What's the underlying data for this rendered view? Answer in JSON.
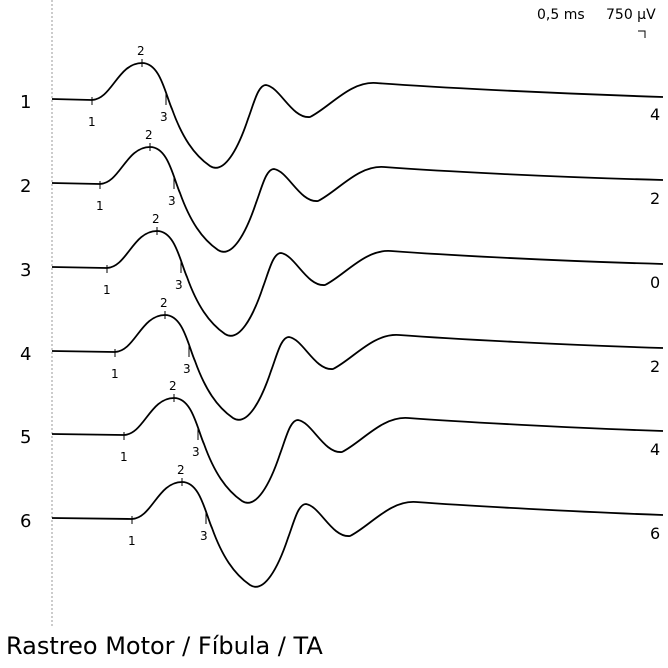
{
  "caption": "Rastreo Motor / Fíbula / TA",
  "scale": {
    "time": "0,5 ms",
    "amplitude": "750 µV"
  },
  "chart_data": {
    "type": "line",
    "title": "Rastreo Motor / Fíbula / TA",
    "time_per_division_ms": 0.5,
    "amplitude_per_division_uV": 750,
    "traces": [
      {
        "label": "1",
        "right_value": "4"
      },
      {
        "label": "2",
        "right_value": "2"
      },
      {
        "label": "3",
        "right_value": "0"
      },
      {
        "label": "4",
        "right_value": "2"
      },
      {
        "label": "5",
        "right_value": "4"
      },
      {
        "label": "6",
        "right_value": "6"
      }
    ],
    "markers": [
      "1",
      "2",
      "3"
    ]
  }
}
